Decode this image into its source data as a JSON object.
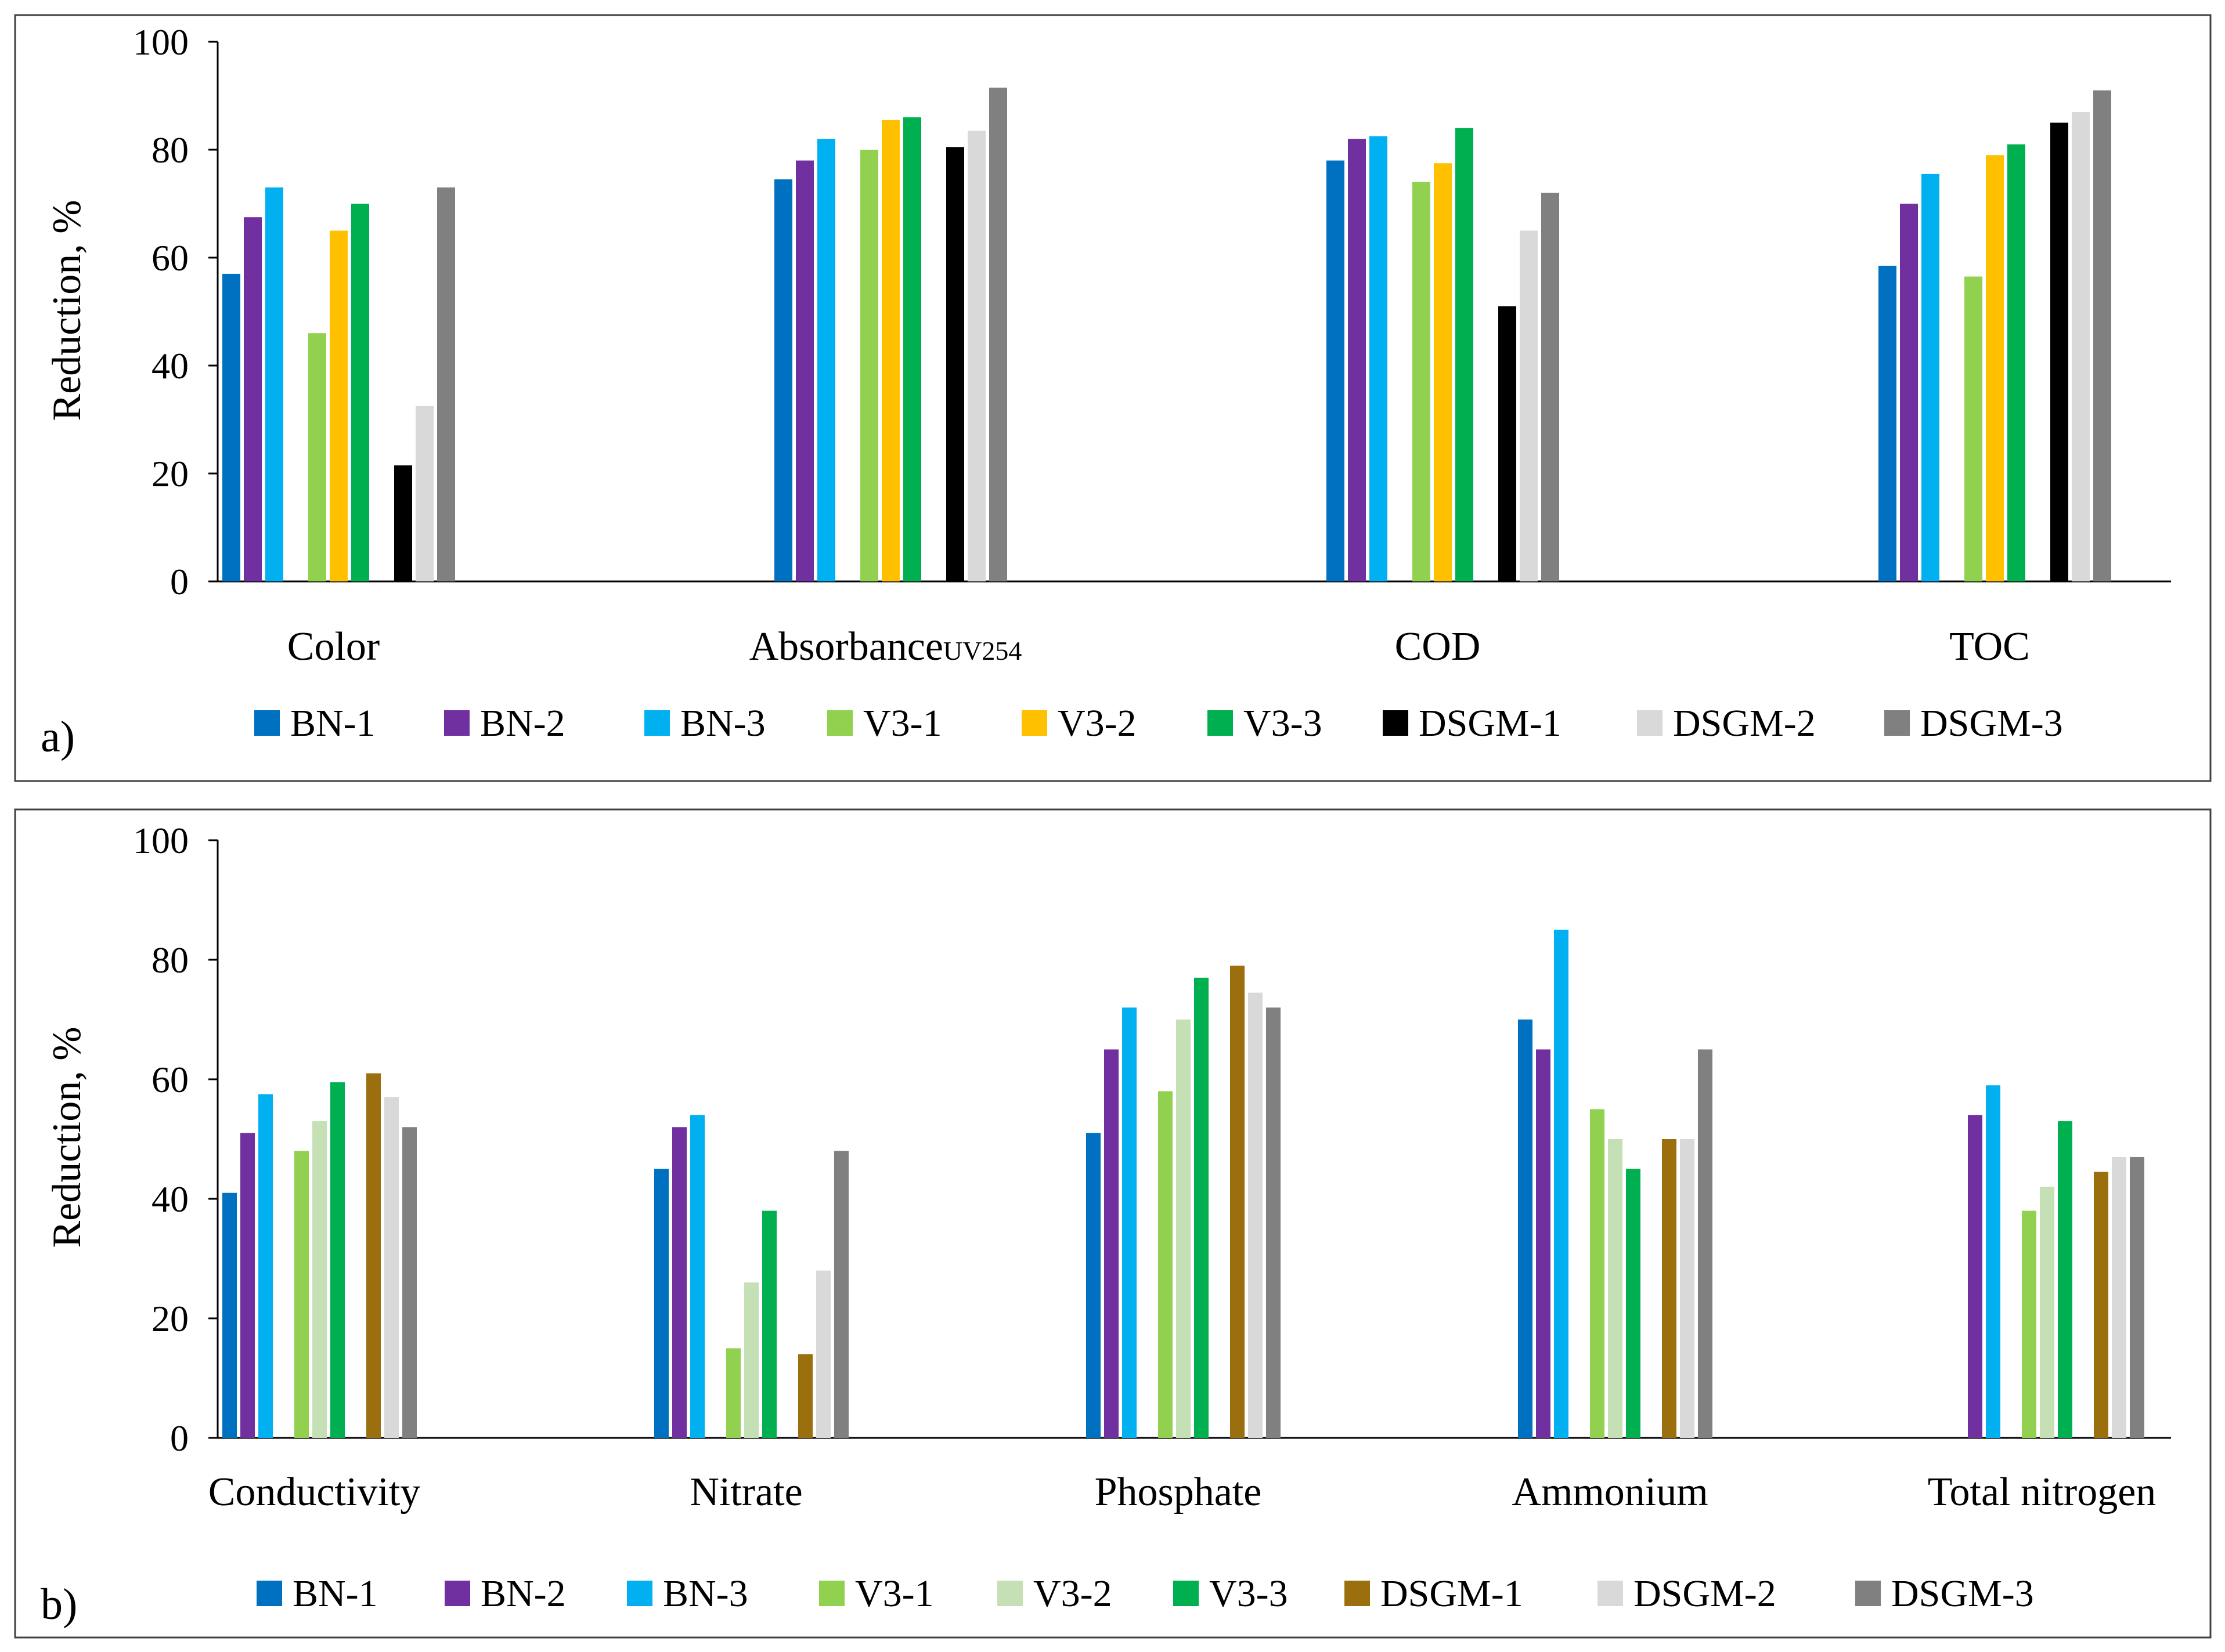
{
  "chart_data": [
    {
      "type": "bar",
      "panel_label": "a)",
      "ylabel": "Reduction, %",
      "ylim": [
        0,
        100
      ],
      "yticks": [
        "0",
        "20",
        "40",
        "60",
        "80",
        "100"
      ],
      "grid": false,
      "legend_position": "bottom",
      "categories": [
        {
          "label": "Color",
          "sub": ""
        },
        {
          "label": "Absorbance",
          "sub": "UV254"
        },
        {
          "label": "COD",
          "sub": ""
        },
        {
          "label": "TOC",
          "sub": ""
        }
      ],
      "series": [
        {
          "name": "BN-1",
          "color": "#0070c0",
          "values": [
            57,
            74.5,
            78,
            58.5
          ]
        },
        {
          "name": "BN-2",
          "color": "#7030a0",
          "values": [
            67.5,
            78,
            82,
            70
          ]
        },
        {
          "name": "BN-3",
          "color": "#00b0f0",
          "values": [
            73,
            82,
            82.5,
            75.5
          ]
        },
        {
          "name": "V3-1",
          "color": "#92d050",
          "values": [
            46,
            80,
            74,
            56.5
          ]
        },
        {
          "name": "V3-2",
          "color": "#ffc000",
          "values": [
            65,
            85.5,
            77.5,
            79
          ]
        },
        {
          "name": "V3-3",
          "color": "#00b050",
          "values": [
            70,
            86,
            84,
            81
          ]
        },
        {
          "name": "DSGM-1",
          "color": "#000000",
          "values": [
            21.5,
            80.5,
            51,
            85
          ]
        },
        {
          "name": "DSGM-2",
          "color": "#d9d9d9",
          "values": [
            32.5,
            83.5,
            65,
            87
          ]
        },
        {
          "name": "DSGM-3",
          "color": "#808080",
          "values": [
            73,
            91.5,
            72,
            91
          ]
        }
      ]
    },
    {
      "type": "bar",
      "panel_label": "b)",
      "ylabel": "Reduction, %",
      "ylim": [
        0,
        100
      ],
      "yticks": [
        "0",
        "20",
        "40",
        "60",
        "80",
        "100"
      ],
      "grid": false,
      "legend_position": "bottom",
      "categories": [
        {
          "label": "Conductivity",
          "sub": ""
        },
        {
          "label": "Nitrate",
          "sub": ""
        },
        {
          "label": "Phosphate",
          "sub": ""
        },
        {
          "label": "Ammonium",
          "sub": ""
        },
        {
          "label": "Total nitrogen",
          "sub": ""
        }
      ],
      "series": [
        {
          "name": "BN-1",
          "color": "#0070c0",
          "values": [
            41,
            45,
            51,
            70,
            null
          ]
        },
        {
          "name": "BN-2",
          "color": "#7030a0",
          "values": [
            51,
            52,
            65,
            65,
            54
          ]
        },
        {
          "name": "BN-3",
          "color": "#00b0f0",
          "values": [
            57.5,
            54,
            72,
            85,
            59
          ]
        },
        {
          "name": "V3-1",
          "color": "#92d050",
          "values": [
            48,
            15,
            58,
            55,
            38
          ]
        },
        {
          "name": "V3-2",
          "color": "#c5e0b4",
          "values": [
            53,
            26,
            70,
            50,
            42
          ]
        },
        {
          "name": "V3-3",
          "color": "#00b050",
          "values": [
            59.5,
            38,
            77,
            45,
            53
          ]
        },
        {
          "name": "DSGM-1",
          "color": "#9c6f0e",
          "values": [
            61,
            14,
            79,
            50,
            44.5
          ]
        },
        {
          "name": "DSGM-2",
          "color": "#d9d9d9",
          "values": [
            57,
            28,
            74.5,
            50,
            47
          ]
        },
        {
          "name": "DSGM-3",
          "color": "#808080",
          "values": [
            52,
            48,
            72,
            65,
            47
          ]
        }
      ]
    }
  ]
}
